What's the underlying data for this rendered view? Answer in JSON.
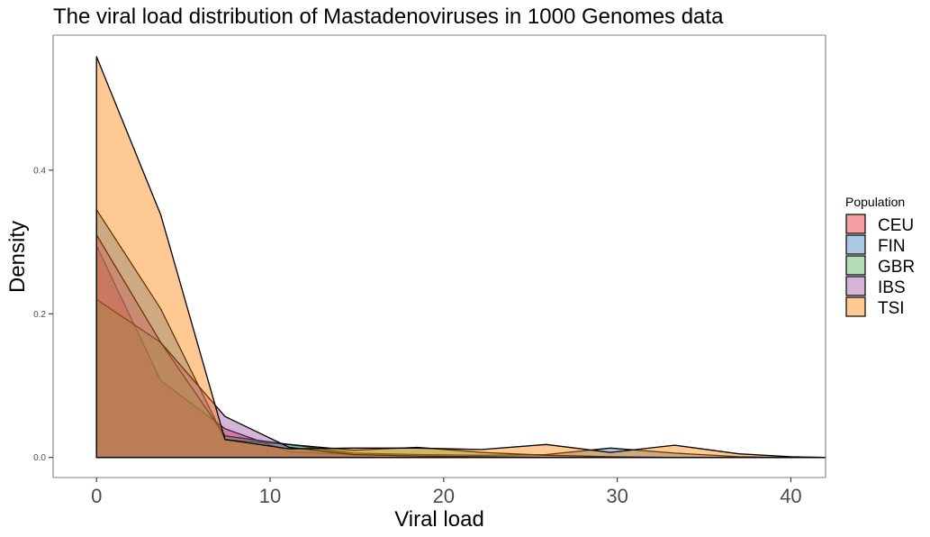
{
  "chart_data": {
    "type": "area",
    "title": "The viral load distribution of Mastadenoviruses in 1000 Genomes data",
    "xlabel": "Viral load",
    "ylabel": "Density",
    "xlim": [
      -2.5,
      42
    ],
    "ylim": [
      -0.028,
      0.588
    ],
    "x_ticks": [
      0,
      10,
      20,
      30,
      40
    ],
    "x_tick_labels": [
      "0",
      "10",
      "20",
      "30",
      "40"
    ],
    "y_ticks": [
      0.0,
      0.2,
      0.4
    ],
    "y_tick_labels": [
      "0.0",
      "0.2",
      "0.4"
    ],
    "grid": false,
    "legend": {
      "title": "Population",
      "position": "right"
    },
    "series": [
      {
        "name": "CEU",
        "color": "#E41A1C",
        "points": [
          [
            0,
            0
          ],
          [
            0,
            0.295
          ],
          [
            3.7,
            0.107
          ],
          [
            7.4,
            0.04
          ],
          [
            11.1,
            0.008
          ],
          [
            14.8,
            0.004
          ],
          [
            18.5,
            0.002
          ],
          [
            22.2,
            0.001
          ],
          [
            25.9,
            0.0
          ],
          [
            29.6,
            0.0
          ],
          [
            33.3,
            0.0
          ],
          [
            37,
            0.0
          ],
          [
            40,
            0.0
          ],
          [
            42,
            0
          ]
        ]
      },
      {
        "name": "FIN",
        "color": "#377EB8",
        "points": [
          [
            0,
            0
          ],
          [
            0,
            0.345
          ],
          [
            3.7,
            0.207
          ],
          [
            7.4,
            0.025
          ],
          [
            11.1,
            0.018
          ],
          [
            14.8,
            0.006
          ],
          [
            18.5,
            0.004
          ],
          [
            22.2,
            0.003
          ],
          [
            25.9,
            0.004
          ],
          [
            29.6,
            0.013
          ],
          [
            33.3,
            0.006
          ],
          [
            37,
            0.001
          ],
          [
            40,
            0.0
          ],
          [
            42,
            0
          ]
        ]
      },
      {
        "name": "GBR",
        "color": "#4DAF4A",
        "points": [
          [
            0,
            0
          ],
          [
            0,
            0.22
          ],
          [
            3.7,
            0.16
          ],
          [
            7.4,
            0.03
          ],
          [
            11.1,
            0.018
          ],
          [
            14.8,
            0.01
          ],
          [
            18.5,
            0.014
          ],
          [
            22.2,
            0.007
          ],
          [
            25.9,
            0.003
          ],
          [
            29.6,
            0.001
          ],
          [
            33.3,
            0.0
          ],
          [
            37,
            0.0
          ],
          [
            40,
            0.0
          ],
          [
            42,
            0
          ]
        ]
      },
      {
        "name": "IBS",
        "color": "#984EA3",
        "points": [
          [
            0,
            0
          ],
          [
            0,
            0.31
          ],
          [
            3.7,
            0.16
          ],
          [
            7.4,
            0.057
          ],
          [
            11.1,
            0.014
          ],
          [
            14.8,
            0.004
          ],
          [
            18.5,
            0.002
          ],
          [
            22.2,
            0.001
          ],
          [
            25.9,
            0.0
          ],
          [
            29.6,
            0.0
          ],
          [
            33.3,
            0.0
          ],
          [
            37,
            0.0
          ],
          [
            40,
            0.0
          ],
          [
            42,
            0
          ]
        ]
      },
      {
        "name": "TSI",
        "color": "#FF7F00",
        "points": [
          [
            0,
            0
          ],
          [
            0,
            0.558
          ],
          [
            3.7,
            0.338
          ],
          [
            7.4,
            0.025
          ],
          [
            11.1,
            0.012
          ],
          [
            14.8,
            0.013
          ],
          [
            18.5,
            0.013
          ],
          [
            22.2,
            0.011
          ],
          [
            25.9,
            0.018
          ],
          [
            29.6,
            0.007
          ],
          [
            33.3,
            0.017
          ],
          [
            37,
            0.005
          ],
          [
            40,
            0.001
          ],
          [
            42,
            0
          ]
        ]
      }
    ]
  }
}
